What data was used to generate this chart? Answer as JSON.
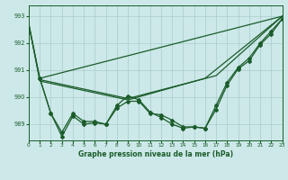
{
  "title": "Graphe pression niveau de la mer (hPa)",
  "bg_color": "#cce8e8",
  "grid_color": "#aacccc",
  "line_color": "#1a5c2a",
  "xlim": [
    0,
    23
  ],
  "ylim": [
    988.4,
    993.4
  ],
  "yticks": [
    989,
    990,
    991,
    992,
    993
  ],
  "xticks": [
    0,
    1,
    2,
    3,
    4,
    5,
    6,
    7,
    8,
    9,
    10,
    11,
    12,
    13,
    14,
    15,
    16,
    17,
    18,
    19,
    20,
    21,
    22,
    23
  ],
  "line1_x": [
    0,
    1,
    23
  ],
  "line1_y": [
    992.7,
    990.7,
    993.0
  ],
  "line2_x": [
    0,
    1,
    9,
    17,
    23
  ],
  "line2_y": [
    992.7,
    990.65,
    989.95,
    990.8,
    993.0
  ],
  "line3_x": [
    0,
    1,
    9,
    16,
    23
  ],
  "line3_y": [
    992.7,
    990.6,
    989.9,
    990.7,
    993.0
  ],
  "line4_x": [
    1,
    2,
    3,
    4,
    5,
    6,
    7,
    8,
    9,
    10,
    11,
    12,
    13,
    14,
    15,
    16,
    17,
    18,
    19,
    20,
    21,
    22,
    23
  ],
  "line4_y": [
    990.7,
    989.4,
    988.55,
    989.3,
    989.0,
    989.05,
    989.0,
    989.6,
    989.85,
    989.85,
    989.4,
    989.35,
    989.15,
    988.9,
    988.9,
    988.85,
    989.55,
    990.45,
    991.05,
    991.35,
    991.95,
    992.35,
    992.9
  ],
  "line5_x": [
    1,
    2,
    3,
    4,
    5,
    6,
    7,
    8,
    9,
    10,
    11,
    12,
    13,
    14,
    15,
    16,
    17,
    18,
    19,
    20,
    21,
    22,
    23
  ],
  "line5_y": [
    990.7,
    989.4,
    988.7,
    989.4,
    989.1,
    989.1,
    989.0,
    989.7,
    990.05,
    989.9,
    989.45,
    989.25,
    989.0,
    988.85,
    988.9,
    988.85,
    989.7,
    990.55,
    991.1,
    991.45,
    992.0,
    992.45,
    992.9
  ]
}
